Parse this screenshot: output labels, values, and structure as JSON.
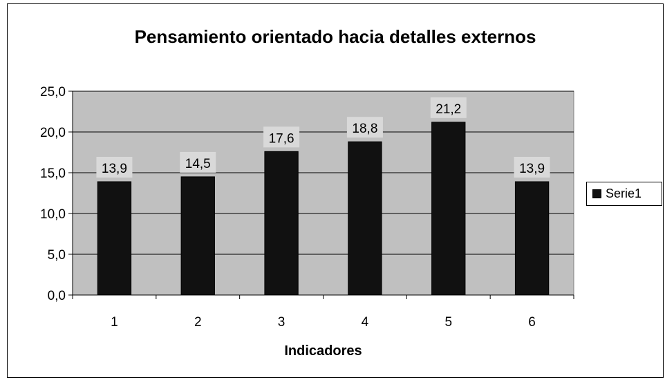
{
  "chart_data": {
    "type": "bar",
    "title": "Pensamiento orientado hacia detalles externos",
    "xlabel": "Indicadores",
    "ylabel": "",
    "categories": [
      "1",
      "2",
      "3",
      "4",
      "5",
      "6"
    ],
    "series": [
      {
        "name": "Serie1",
        "values": [
          13.9,
          14.5,
          17.6,
          18.8,
          21.2,
          13.9
        ]
      }
    ],
    "data_labels": [
      "13,9",
      "14,5",
      "17,6",
      "18,8",
      "21,2",
      "13,9"
    ],
    "ylim": [
      0,
      25
    ],
    "yticks": [
      0,
      5,
      10,
      15,
      20,
      25
    ],
    "ytick_labels": [
      "0,0",
      "5,0",
      "10,0",
      "15,0",
      "20,0",
      "25,0"
    ],
    "grid": true,
    "legend": "right",
    "colors": {
      "bar": "#111111",
      "plot_background": "#c0c0c0",
      "data_label_background": "#d9d9d9"
    }
  }
}
